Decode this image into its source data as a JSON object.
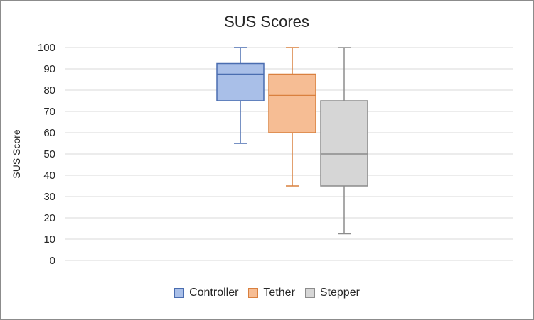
{
  "chart_data": {
    "type": "boxplot",
    "title": "SUS Scores",
    "ylabel": "SUS Score",
    "xlabel": "",
    "ylim": [
      0,
      100
    ],
    "yticks": [
      0,
      10,
      20,
      30,
      40,
      50,
      60,
      70,
      80,
      90,
      100
    ],
    "grid": true,
    "legend_position": "bottom",
    "series": [
      {
        "name": "Controller",
        "min": 55,
        "q1": 75,
        "median": 87.5,
        "q3": 92.5,
        "max": 100,
        "fill": "#a9bfe8",
        "stroke": "#4a6db0"
      },
      {
        "name": "Tether",
        "min": 35,
        "q1": 60,
        "median": 77.5,
        "q3": 87.5,
        "max": 100,
        "fill": "#f6bd94",
        "stroke": "#d9803f"
      },
      {
        "name": "Stepper",
        "min": 12.5,
        "q1": 35,
        "median": 50,
        "q3": 75,
        "max": 100,
        "fill": "#d6d6d6",
        "stroke": "#8c8c8c"
      }
    ]
  }
}
